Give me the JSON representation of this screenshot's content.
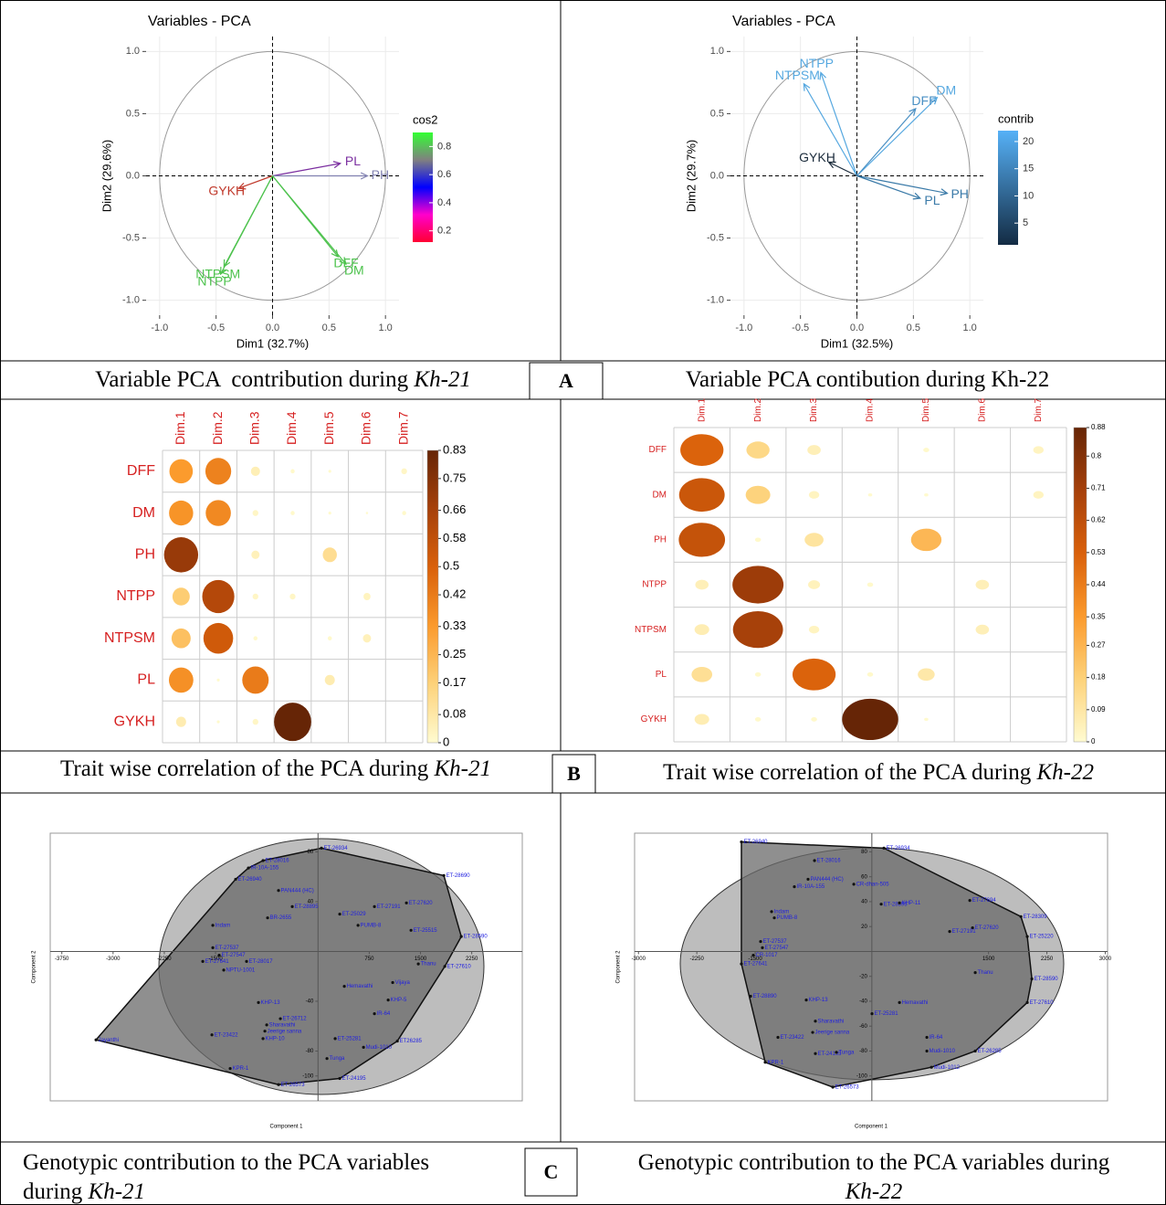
{
  "chart_data": [
    {
      "type": "vector",
      "title": "Variables - PCA",
      "x_label": "Dim1 (32.7%)",
      "y_label": "Dim2 (29.6%)",
      "xlim": [
        -1.12,
        1.12
      ],
      "ylim": [
        -1.12,
        1.12
      ],
      "xticks": [
        {
          "value": -1,
          "label": "-1.0"
        },
        -0.5,
        {
          "value": 0,
          "label": "0.0"
        },
        0.5,
        {
          "value": 1,
          "label": "1.0"
        }
      ],
      "yticks": [
        {
          "value": -1,
          "label": "-1.0"
        },
        -0.5,
        {
          "value": 0,
          "label": "0.0"
        },
        0.5,
        {
          "value": 1,
          "label": "1.0"
        }
      ],
      "legend_title": "cos2",
      "legend_lim": [
        0.12,
        0.9
      ],
      "legend_ticks": [
        0.2,
        0.4,
        0.6,
        0.8
      ],
      "legend_colors": [
        "#ff0033",
        "#ff00cc",
        "#0000ff",
        "#808080",
        "#33ff33"
      ],
      "variables": [
        {
          "name": "PL",
          "x": 0.6,
          "y": 0.1,
          "color": "#7b2fa0"
        },
        {
          "name": "PH",
          "x": 0.84,
          "y": 0.0,
          "color": "#8080b0"
        },
        {
          "name": "GYKH",
          "x": -0.3,
          "y": -0.1,
          "color": "#c0392b"
        },
        {
          "name": "NTPSM",
          "x": -0.43,
          "y": -0.73,
          "color": "#4dc24d"
        },
        {
          "name": "NTPP",
          "x": -0.46,
          "y": -0.79,
          "color": "#4dc24d"
        },
        {
          "name": "DFF",
          "x": 0.58,
          "y": -0.65,
          "color": "#4dc24d"
        },
        {
          "name": "DM",
          "x": 0.65,
          "y": -0.71,
          "color": "#4dc24d"
        }
      ]
    },
    {
      "type": "vector",
      "title": "Variables - PCA",
      "x_label": "Dim1 (32.5%)",
      "y_label": "Dim2 (29.7%)",
      "xlim": [
        -1.12,
        1.12
      ],
      "ylim": [
        -1.12,
        1.12
      ],
      "xticks": [
        {
          "value": -1,
          "label": "-1.0"
        },
        -0.5,
        {
          "value": 0,
          "label": "0.0"
        },
        0.5,
        {
          "value": 1,
          "label": "1.0"
        }
      ],
      "yticks": [
        {
          "value": -1,
          "label": "-1.0"
        },
        -0.5,
        {
          "value": 0,
          "label": "0.0"
        },
        0.5,
        {
          "value": 1,
          "label": "1.0"
        }
      ],
      "legend_title": "contrib",
      "legend_lim": [
        1,
        22
      ],
      "legend_ticks": [
        5,
        10,
        15,
        20
      ],
      "legend_colors": [
        "#132b43",
        "#56b1f7"
      ],
      "variables": [
        {
          "name": "NTPP",
          "x": -0.32,
          "y": 0.83,
          "color": "#56a8e0"
        },
        {
          "name": "NTPSM",
          "x": -0.47,
          "y": 0.74,
          "color": "#56a8e0"
        },
        {
          "name": "DM",
          "x": 0.71,
          "y": 0.63,
          "color": "#56a8e0"
        },
        {
          "name": "DFF",
          "x": 0.52,
          "y": 0.54,
          "color": "#4a90c4"
        },
        {
          "name": "GYKH",
          "x": -0.25,
          "y": 0.11,
          "color": "#1a2a3a"
        },
        {
          "name": "PL",
          "x": 0.56,
          "y": -0.18,
          "color": "#3a7aa8"
        },
        {
          "name": "PH",
          "x": 0.8,
          "y": -0.14,
          "color": "#3a7aa8"
        }
      ]
    },
    {
      "type": "corrplot",
      "rows": [
        "DFF",
        "DM",
        "PH",
        "NTPP",
        "NTPSM",
        "PL",
        "GYKH"
      ],
      "columns": [
        "Dim.1",
        "Dim.2",
        "Dim.3",
        "Dim.4",
        "Dim.5",
        "Dim.6",
        "Dim.7"
      ],
      "values": [
        [
          0.33,
          0.4,
          0.05,
          0.01,
          0.005,
          0,
          0.02
        ],
        [
          0.35,
          0.38,
          0.02,
          0.01,
          0.005,
          0.003,
          0.01
        ],
        [
          0.7,
          0,
          0.04,
          0,
          0.12,
          0,
          0
        ],
        [
          0.18,
          0.62,
          0.02,
          0.02,
          0,
          0.03,
          0
        ],
        [
          0.22,
          0.53,
          0.01,
          0,
          0.01,
          0.04,
          0
        ],
        [
          0.36,
          0.005,
          0.42,
          0,
          0.06,
          0,
          0
        ],
        [
          0.06,
          0.005,
          0.02,
          0.83,
          0,
          0,
          0
        ]
      ],
      "colorbar_lim": [
        0,
        0.83
      ],
      "colorbar_ticks": [
        0,
        0.08,
        0.17,
        0.25,
        0.33,
        0.42,
        0.5,
        0.58,
        0.66,
        0.75,
        0.83
      ],
      "colors": [
        "#fffbd0",
        "#fdd27a",
        "#fb9a2c",
        "#d9600a",
        "#a6400a",
        "#662506"
      ]
    },
    {
      "type": "corrplot",
      "rows": [
        "DFF",
        "DM",
        "PH",
        "NTPP",
        "NTPSM",
        "PL",
        "GYKH"
      ],
      "columns": [
        "Dim.1",
        "Dim.2",
        "Dim.3",
        "Dim.4",
        "Dim.5",
        "Dim.6",
        "Dim.7"
      ],
      "values": [
        [
          0.52,
          0.15,
          0.05,
          0,
          0.01,
          0,
          0.03
        ],
        [
          0.58,
          0.17,
          0.03,
          0.005,
          0.005,
          0,
          0.03
        ],
        [
          0.6,
          0.01,
          0.1,
          0,
          0.26,
          0,
          0
        ],
        [
          0.05,
          0.73,
          0.04,
          0.01,
          0,
          0.05,
          0
        ],
        [
          0.06,
          0.7,
          0.03,
          0,
          0,
          0.05,
          0
        ],
        [
          0.12,
          0.01,
          0.52,
          0.01,
          0.08,
          0,
          0
        ],
        [
          0.06,
          0.01,
          0.01,
          0.88,
          0.005,
          0,
          0
        ]
      ],
      "colorbar_lim": [
        0,
        0.88
      ],
      "colorbar_ticks": [
        0,
        0.09,
        0.18,
        0.27,
        0.35,
        0.44,
        0.53,
        0.62,
        0.71,
        0.8,
        0.88
      ],
      "colors": [
        "#fffbd0",
        "#fdd27a",
        "#fb9a2c",
        "#d9600a",
        "#a6400a",
        "#662506"
      ]
    },
    {
      "type": "scatter",
      "x_label": "Component 1",
      "y_label": "Component 2",
      "xlim": [
        -3920,
        2990
      ],
      "ylim": [
        -120,
        95
      ],
      "xticks": [
        -3750,
        -3000,
        -2250,
        -1500,
        750,
        1500,
        2250
      ],
      "yticks": [
        -100,
        -80,
        -40,
        40,
        80
      ],
      "label_color": "#2020e0",
      "points": [
        {
          "name": "ET-26934",
          "x": 50,
          "y": 83
        },
        {
          "name": "ET-28016",
          "x": -805,
          "y": 73
        },
        {
          "name": "IR-10A-155",
          "x": -1019,
          "y": 67
        },
        {
          "name": "ET-26940",
          "x": -1206,
          "y": 58
        },
        {
          "name": "PAN444 (HC)",
          "x": -578,
          "y": 49
        },
        {
          "name": "ET-28895",
          "x": -377,
          "y": 36
        },
        {
          "name": "BR-2655",
          "x": -738,
          "y": 27
        },
        {
          "name": "Indam",
          "x": -1540,
          "y": 21
        },
        {
          "name": "ET-27537",
          "x": -1540,
          "y": 3
        },
        {
          "name": "ET-27547",
          "x": -1447,
          "y": -3
        },
        {
          "name": "ET-28017",
          "x": -1046,
          "y": -8
        },
        {
          "name": "ET-27641",
          "x": -1687,
          "y": -8
        },
        {
          "name": "NPTU-1001",
          "x": -1380,
          "y": -15
        },
        {
          "name": "KHP-13",
          "x": -872,
          "y": -41
        },
        {
          "name": "ET-26712",
          "x": -551,
          "y": -54
        },
        {
          "name": "Sharavathi",
          "x": -751,
          "y": -59
        },
        {
          "name": "ET-23422",
          "x": -1553,
          "y": -67
        },
        {
          "name": "Jeerige sanna",
          "x": -778,
          "y": -64
        },
        {
          "name": "KHP-10",
          "x": -805,
          "y": -70
        },
        {
          "name": "KPR-1",
          "x": -1286,
          "y": -94
        },
        {
          "name": "ET-26573",
          "x": -578,
          "y": -107
        },
        {
          "name": "ET-24195",
          "x": 318,
          "y": -102
        },
        {
          "name": "Tunga",
          "x": 131,
          "y": -86
        },
        {
          "name": "Mudi-1010",
          "x": 666,
          "y": -77
        },
        {
          "name": "ET-25281",
          "x": 251,
          "y": -70
        },
        {
          "name": "ET26285",
          "x": 1161,
          "y": -72
        },
        {
          "name": "ET-27610",
          "x": 1856,
          "y": -12
        },
        {
          "name": "Thanu",
          "x": 1468,
          "y": -10
        },
        {
          "name": "ET-28590",
          "x": 2097,
          "y": 12
        },
        {
          "name": "ET-25515",
          "x": 1361,
          "y": 17
        },
        {
          "name": "ET-27620",
          "x": 1294,
          "y": 39
        },
        {
          "name": "ET-28690",
          "x": 1842,
          "y": 61
        },
        {
          "name": "ET-27191",
          "x": 826,
          "y": 36
        },
        {
          "name": "ET-25029",
          "x": 318,
          "y": 30
        },
        {
          "name": "PUMB-8",
          "x": 586,
          "y": 21
        },
        {
          "name": "IR-64",
          "x": 826,
          "y": -50
        },
        {
          "name": "KHP-5",
          "x": 1027,
          "y": -39
        },
        {
          "name": "Vijaya",
          "x": 1093,
          "y": -25
        },
        {
          "name": "Hemavathi",
          "x": 385,
          "y": -28
        },
        {
          "name": "Jayanthi",
          "x": -3250,
          "y": -71
        }
      ]
    },
    {
      "type": "scatter",
      "x_label": "Component 1",
      "y_label": "Component 2",
      "xlim": [
        -3050,
        3030
      ],
      "ylim": [
        -120,
        95
      ],
      "xticks": [
        -3000,
        -2250,
        -1500,
        1500,
        2250,
        3000
      ],
      "yticks": [
        -100,
        -80,
        -60,
        -40,
        -20,
        20,
        40,
        60,
        80
      ],
      "label_color": "#2020e0",
      "points": [
        {
          "name": "ET-26934",
          "x": 155,
          "y": 83
        },
        {
          "name": "ET-28016",
          "x": -737,
          "y": 73
        },
        {
          "name": "ET-26940",
          "x": -1677,
          "y": 88
        },
        {
          "name": "PAN444 (HC)",
          "x": -820,
          "y": 58
        },
        {
          "name": "IR-10A-155",
          "x": -996,
          "y": 52
        },
        {
          "name": "CR-dhan-505",
          "x": -232,
          "y": 54
        },
        {
          "name": "ET-28895",
          "x": 120,
          "y": 38
        },
        {
          "name": "KHP-11",
          "x": 355,
          "y": 39
        },
        {
          "name": "Indam",
          "x": -1289,
          "y": 32
        },
        {
          "name": "PUMB-8",
          "x": -1254,
          "y": 27
        },
        {
          "name": "ET-27537",
          "x": -1430,
          "y": 8
        },
        {
          "name": "ET-27547",
          "x": -1407,
          "y": 3
        },
        {
          "name": "CR-1017",
          "x": -1524,
          "y": -3
        },
        {
          "name": "ET-27641",
          "x": -1677,
          "y": -10
        },
        {
          "name": "ET-27694",
          "x": 1259,
          "y": 41
        },
        {
          "name": "ET-28309",
          "x": 1916,
          "y": 28
        },
        {
          "name": "ET-27620",
          "x": 1294,
          "y": 19
        },
        {
          "name": "ET-25220",
          "x": 1998,
          "y": 12
        },
        {
          "name": "ET-27191",
          "x": 1000,
          "y": 16
        },
        {
          "name": "ET-28590",
          "x": 2057,
          "y": -22
        },
        {
          "name": "ET-27610",
          "x": 1998,
          "y": -41
        },
        {
          "name": "Thanu",
          "x": 1329,
          "y": -17
        },
        {
          "name": "ET-26573",
          "x": -502,
          "y": -109
        },
        {
          "name": "KPR-1",
          "x": -1371,
          "y": -89
        },
        {
          "name": "ET-23422",
          "x": -1207,
          "y": -69
        },
        {
          "name": "Jeerige sanna",
          "x": -761,
          "y": -65
        },
        {
          "name": "KHP-13",
          "x": -843,
          "y": -39
        },
        {
          "name": "Sharavathi",
          "x": -726,
          "y": -56
        },
        {
          "name": "ET-24195",
          "x": -726,
          "y": -82
        },
        {
          "name": "Tunga",
          "x": -456,
          "y": -81
        },
        {
          "name": "ET-28890",
          "x": -1559,
          "y": -36
        },
        {
          "name": "Mudi-1010",
          "x": 707,
          "y": -80
        },
        {
          "name": "Mudi-1012",
          "x": 766,
          "y": -93
        },
        {
          "name": "ET-26285",
          "x": 1329,
          "y": -80
        },
        {
          "name": "Hemavathi",
          "x": 355,
          "y": -41
        },
        {
          "name": "IR-64",
          "x": 707,
          "y": -69
        },
        {
          "name": "ET-25281",
          "x": 2,
          "y": -50
        }
      ]
    }
  ],
  "captions": [
    [
      [
        {
          "text": "Variable PCA  contribution during "
        },
        {
          "text": "Kh-21",
          "style": "italic"
        }
      ]
    ],
    [
      [
        {
          "text": "Variable PCA contibution during Kh-22"
        }
      ]
    ],
    [
      [
        {
          "text": "Trait wise correlation of the PCA during "
        },
        {
          "text": "Kh-21",
          "style": "italic"
        }
      ]
    ],
    [
      [
        {
          "text": "Trait wise correlation of the PCA during "
        },
        {
          "text": "Kh-22",
          "style": "italic"
        }
      ]
    ],
    [
      [
        {
          "text": "Genotypic contribution to the PCA variables"
        }
      ],
      [
        {
          "text": "during "
        },
        {
          "text": "Kh-21",
          "style": "italic"
        }
      ]
    ],
    [
      [
        {
          "text": "Genotypic contribution to the PCA variables during"
        }
      ],
      [
        {
          "text": "Kh-22",
          "style": "italic"
        }
      ]
    ]
  ],
  "panel_letters": [
    "A",
    "B",
    "C"
  ]
}
